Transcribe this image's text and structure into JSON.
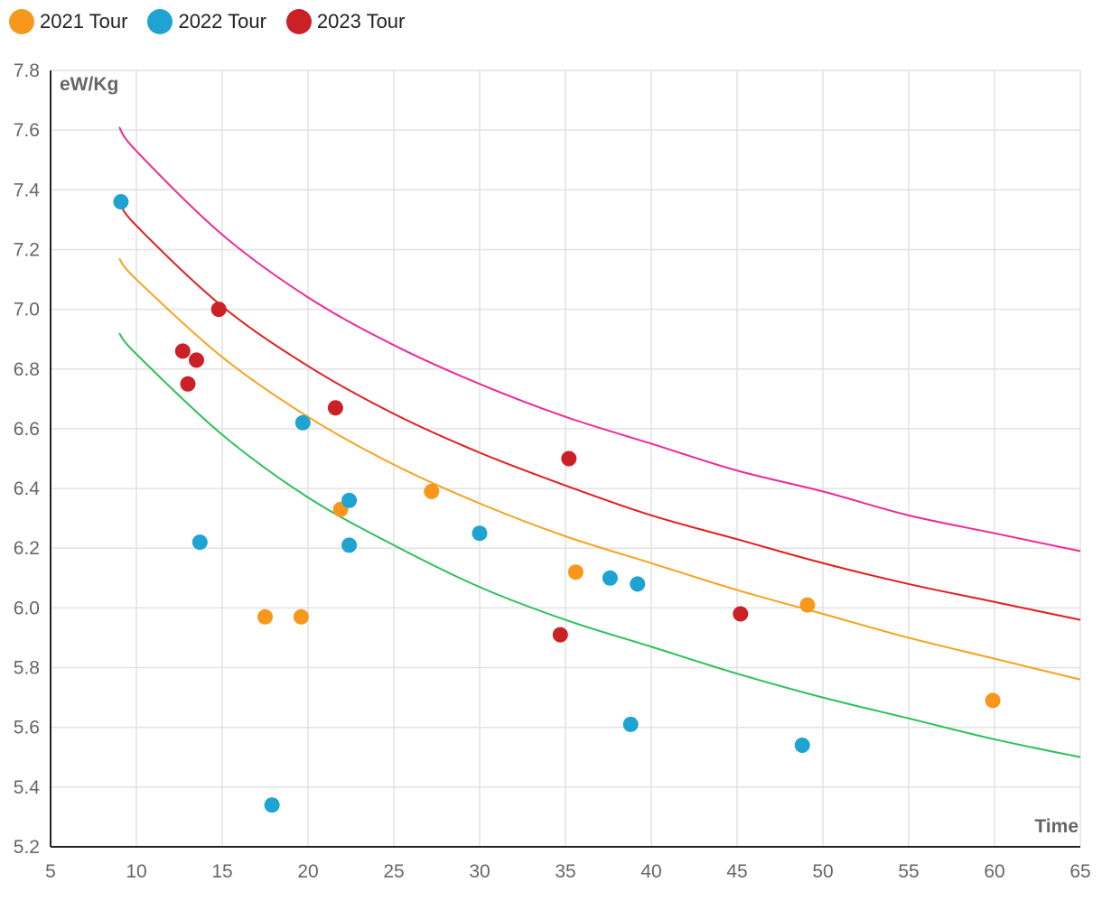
{
  "chart_data": {
    "type": "scatter",
    "title": "",
    "xlabel": "Time",
    "ylabel": "eW/Kg",
    "xlim": [
      5,
      65
    ],
    "ylim": [
      5.2,
      7.8
    ],
    "xticks": [
      "5",
      "10",
      "15",
      "20",
      "25",
      "30",
      "35",
      "40",
      "45",
      "50",
      "55",
      "60",
      "65"
    ],
    "yticks": [
      "5.2",
      "5.4",
      "5.6",
      "5.8",
      "6.0",
      "6.2",
      "6.4",
      "6.6",
      "6.8",
      "7.0",
      "7.2",
      "7.4",
      "7.6",
      "7.8"
    ],
    "grid": true,
    "legend_position": "top-left",
    "series": [
      {
        "name": "2021 Tour",
        "color": "#F7981D",
        "points": [
          {
            "x": 17.5,
            "y": 5.97
          },
          {
            "x": 19.6,
            "y": 5.97
          },
          {
            "x": 21.9,
            "y": 6.33
          },
          {
            "x": 27.2,
            "y": 6.39
          },
          {
            "x": 35.6,
            "y": 6.12
          },
          {
            "x": 49.1,
            "y": 6.01
          },
          {
            "x": 59.9,
            "y": 5.69
          }
        ]
      },
      {
        "name": "2022 Tour",
        "color": "#1EA3D2",
        "points": [
          {
            "x": 9.1,
            "y": 7.36
          },
          {
            "x": 13.7,
            "y": 6.22
          },
          {
            "x": 17.9,
            "y": 5.34
          },
          {
            "x": 19.7,
            "y": 6.62
          },
          {
            "x": 22.4,
            "y": 6.36
          },
          {
            "x": 22.4,
            "y": 6.21
          },
          {
            "x": 30.0,
            "y": 6.25
          },
          {
            "x": 37.6,
            "y": 6.1
          },
          {
            "x": 39.2,
            "y": 6.08
          },
          {
            "x": 38.8,
            "y": 5.61
          },
          {
            "x": 48.8,
            "y": 5.54
          }
        ]
      },
      {
        "name": "2023 Tour",
        "color": "#CC2027",
        "points": [
          {
            "x": 12.7,
            "y": 6.86
          },
          {
            "x": 13.5,
            "y": 6.83
          },
          {
            "x": 13.0,
            "y": 6.75
          },
          {
            "x": 14.8,
            "y": 7.0
          },
          {
            "x": 21.6,
            "y": 6.67
          },
          {
            "x": 35.2,
            "y": 6.5
          },
          {
            "x": 34.7,
            "y": 5.91
          },
          {
            "x": 45.2,
            "y": 5.98
          }
        ]
      }
    ],
    "reference_curves": [
      {
        "name": "pink",
        "color": "#EE2A97",
        "x": [
          9,
          10,
          15,
          20,
          25,
          30,
          35,
          40,
          45,
          50,
          55,
          60,
          65
        ],
        "y": [
          7.61,
          7.53,
          7.25,
          7.04,
          6.88,
          6.75,
          6.64,
          6.55,
          6.46,
          6.39,
          6.31,
          6.25,
          6.19
        ]
      },
      {
        "name": "red",
        "color": "#E41E1E",
        "x": [
          9,
          10,
          15,
          20,
          25,
          30,
          35,
          40,
          45,
          50,
          55,
          60,
          65
        ],
        "y": [
          7.36,
          7.28,
          7.01,
          6.81,
          6.65,
          6.52,
          6.41,
          6.31,
          6.23,
          6.15,
          6.08,
          6.02,
          5.96
        ]
      },
      {
        "name": "orange",
        "color": "#F7A21B",
        "x": [
          9,
          10,
          15,
          20,
          25,
          30,
          35,
          40,
          45,
          50,
          55,
          60,
          65
        ],
        "y": [
          7.17,
          7.1,
          6.84,
          6.64,
          6.48,
          6.35,
          6.24,
          6.15,
          6.06,
          5.98,
          5.9,
          5.83,
          5.76
        ]
      },
      {
        "name": "green",
        "color": "#2EC05C",
        "x": [
          9,
          10,
          15,
          20,
          25,
          30,
          35,
          40,
          45,
          50,
          55,
          60,
          65
        ],
        "y": [
          6.92,
          6.85,
          6.58,
          6.37,
          6.21,
          6.07,
          5.96,
          5.87,
          5.78,
          5.7,
          5.63,
          5.56,
          5.5
        ]
      }
    ]
  }
}
